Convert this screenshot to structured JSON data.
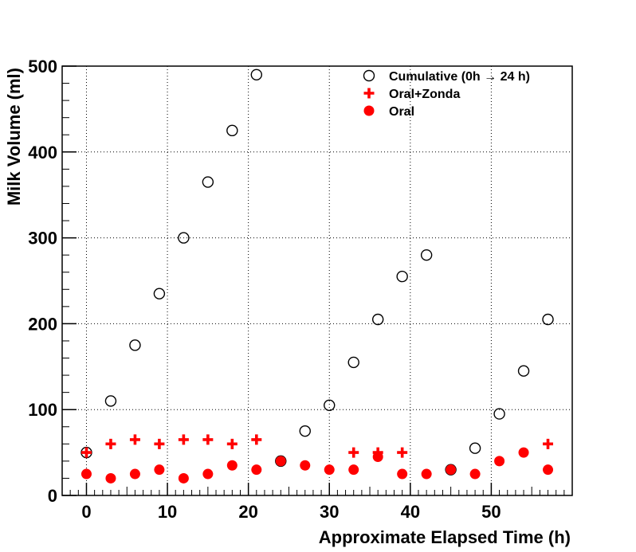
{
  "chart_data": {
    "type": "scatter",
    "xlabel": "Approximate Elapsed Time (h)",
    "ylabel": "Milk Volume (ml)",
    "xlim": [
      -3,
      60
    ],
    "ylim": [
      0,
      500
    ],
    "x_ticks": [
      0,
      10,
      20,
      30,
      40,
      50
    ],
    "y_ticks": [
      0,
      100,
      200,
      300,
      400,
      500
    ],
    "grid": true,
    "legend_position": "top-right",
    "series": [
      {
        "name": "Cumulative (0h → 24 h)",
        "marker": "open-circle",
        "color": "#000000",
        "points": [
          [
            0,
            50
          ],
          [
            3,
            110
          ],
          [
            6,
            175
          ],
          [
            9,
            235
          ],
          [
            12,
            300
          ],
          [
            15,
            365
          ],
          [
            18,
            425
          ],
          [
            21,
            490
          ],
          [
            24,
            40
          ],
          [
            27,
            75
          ],
          [
            30,
            105
          ],
          [
            33,
            155
          ],
          [
            36,
            205
          ],
          [
            39,
            255
          ],
          [
            42,
            280
          ],
          [
            45,
            30
          ],
          [
            48,
            55
          ],
          [
            51,
            95
          ],
          [
            54,
            145
          ],
          [
            57,
            205
          ]
        ]
      },
      {
        "name": "Oral+Zonda",
        "marker": "plus",
        "color": "#ff0000",
        "points": [
          [
            0,
            50
          ],
          [
            3,
            60
          ],
          [
            6,
            65
          ],
          [
            9,
            60
          ],
          [
            12,
            65
          ],
          [
            15,
            65
          ],
          [
            18,
            60
          ],
          [
            21,
            65
          ],
          [
            33,
            50
          ],
          [
            36,
            50
          ],
          [
            39,
            50
          ],
          [
            57,
            60
          ]
        ]
      },
      {
        "name": "Oral",
        "marker": "filled-circle",
        "color": "#ff0000",
        "points": [
          [
            0,
            25
          ],
          [
            3,
            20
          ],
          [
            6,
            25
          ],
          [
            9,
            30
          ],
          [
            12,
            20
          ],
          [
            15,
            25
          ],
          [
            18,
            35
          ],
          [
            21,
            30
          ],
          [
            24,
            40
          ],
          [
            27,
            35
          ],
          [
            30,
            30
          ],
          [
            33,
            30
          ],
          [
            36,
            45
          ],
          [
            39,
            25
          ],
          [
            42,
            25
          ],
          [
            45,
            30
          ],
          [
            48,
            25
          ],
          [
            51,
            40
          ],
          [
            54,
            50
          ],
          [
            57,
            30
          ]
        ]
      }
    ]
  }
}
